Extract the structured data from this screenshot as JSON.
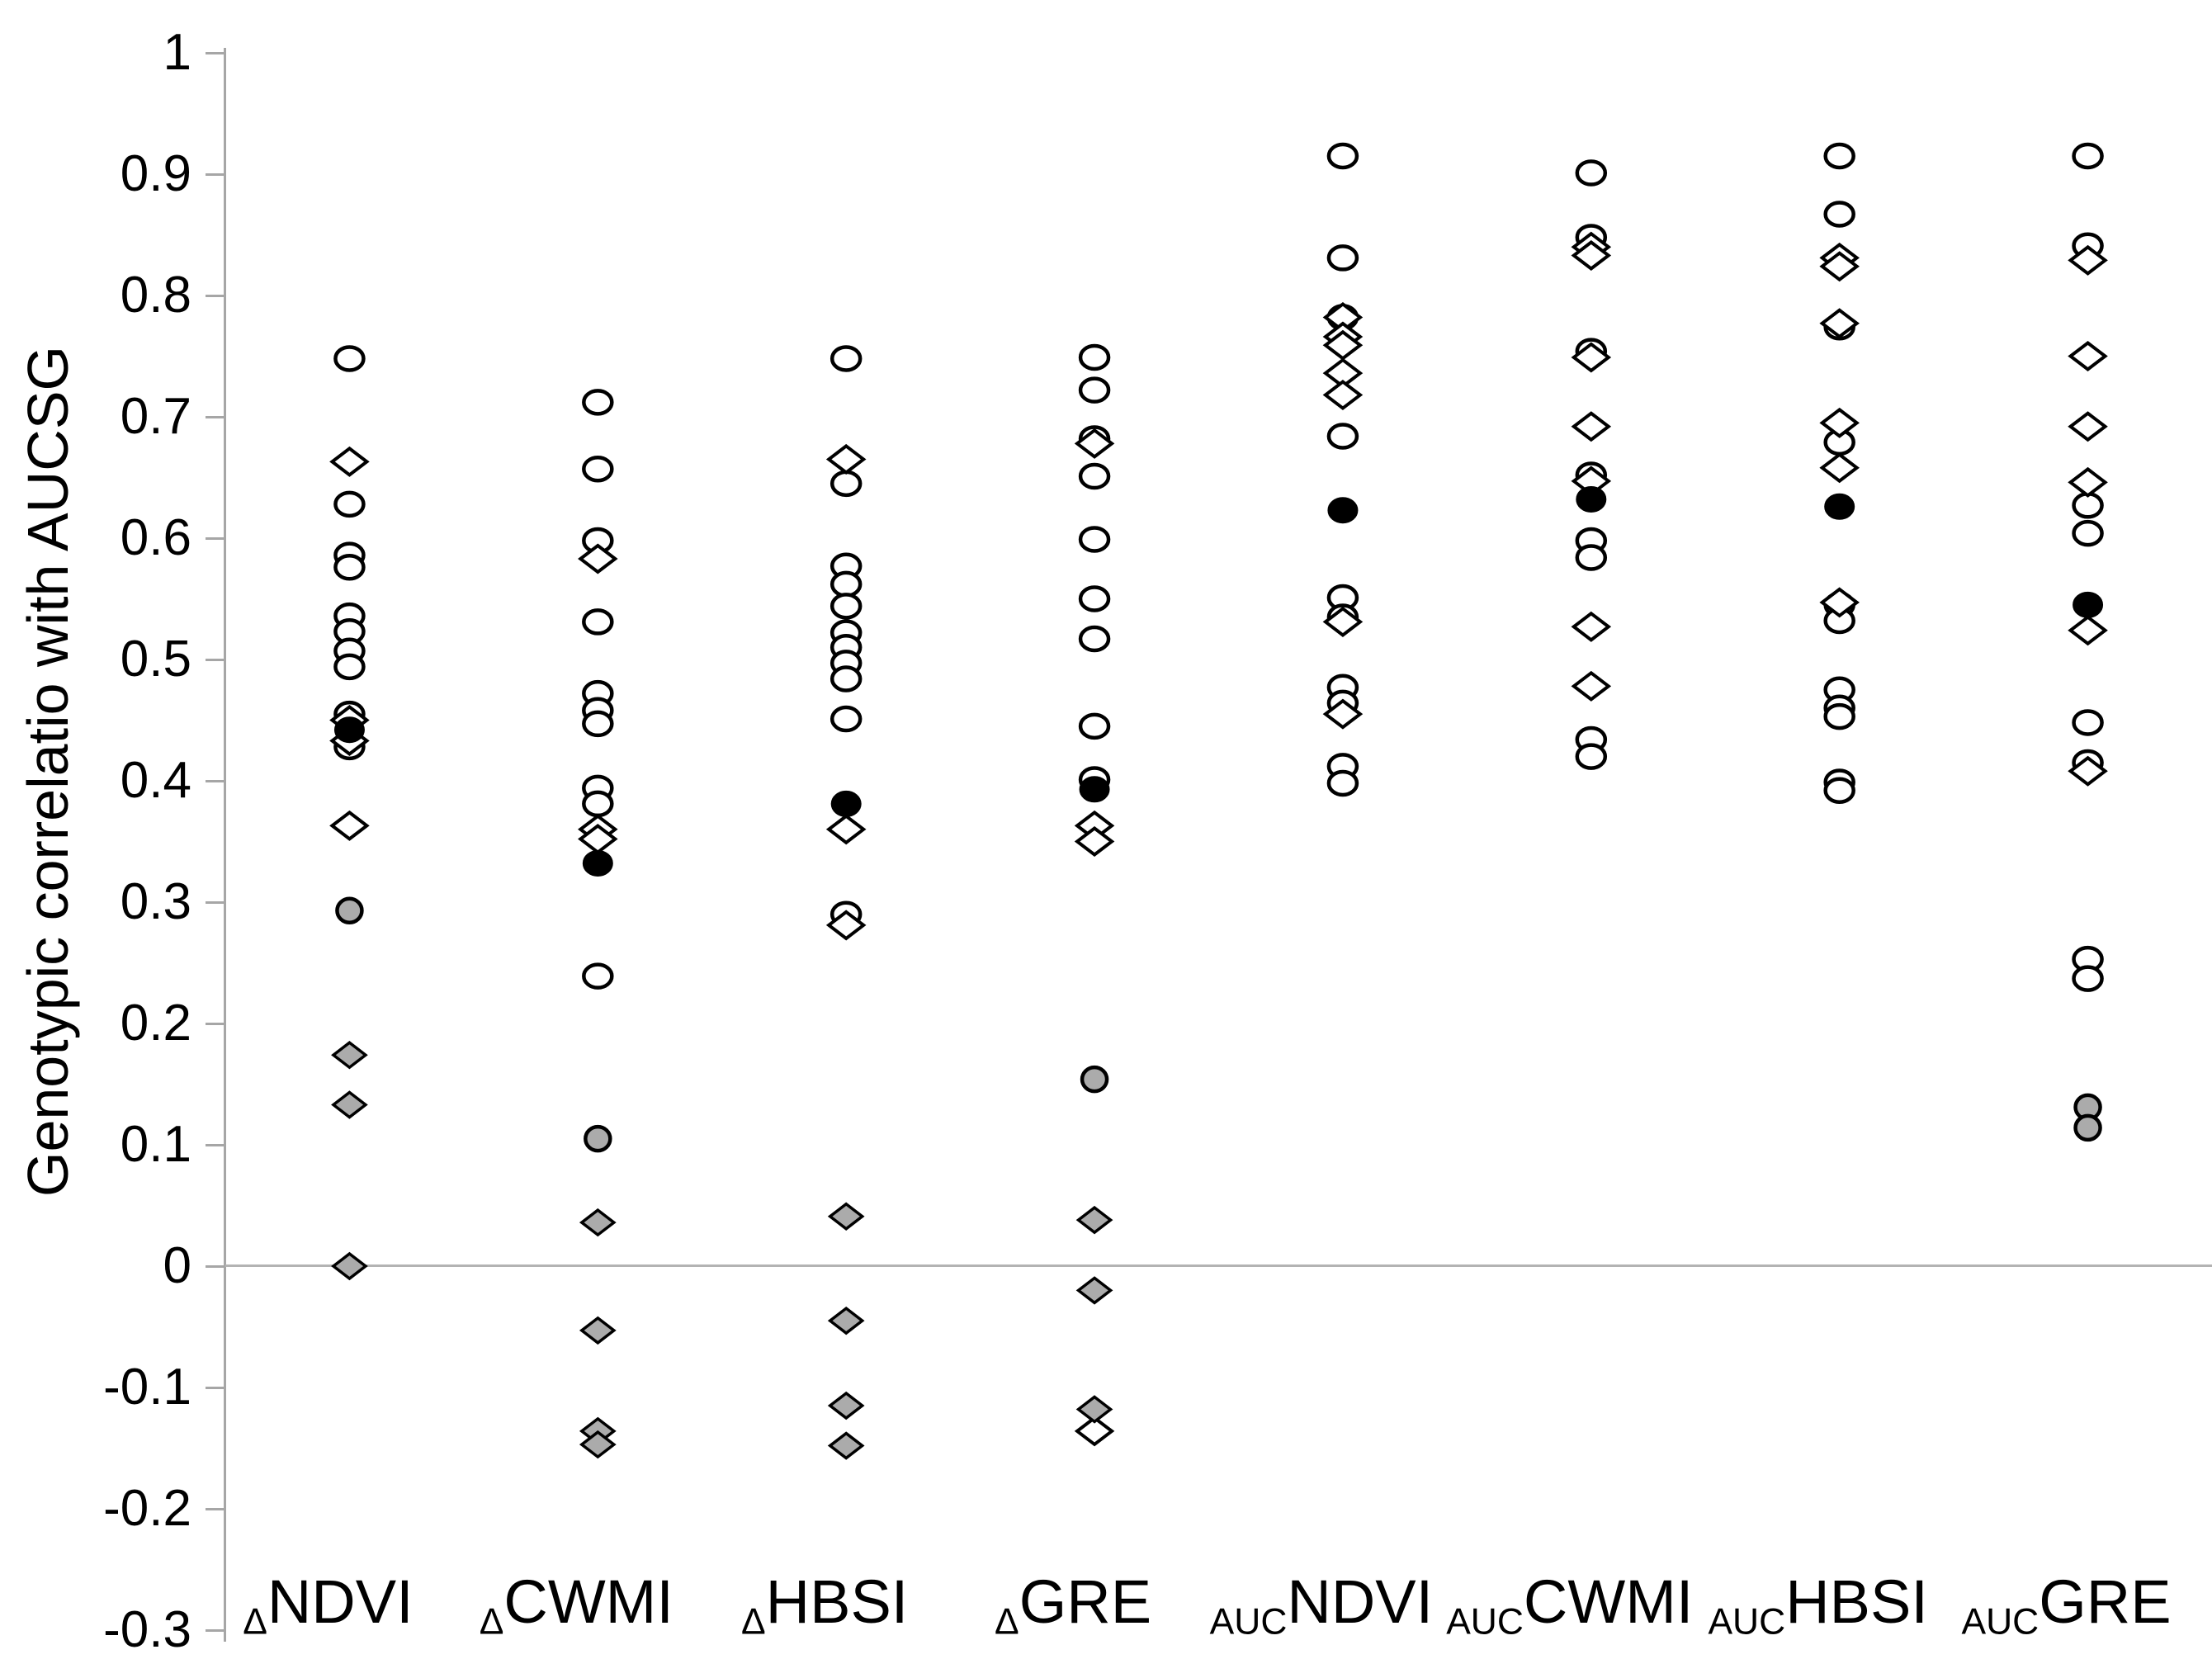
{
  "chart_data": {
    "type": "scatter",
    "title": "",
    "xlabel": "",
    "ylabel": "Genotypic correlatio with AUCSG",
    "ylim": [
      -0.3,
      1.0
    ],
    "y_ticks": [
      "1",
      "0.9",
      "0.8",
      "0.7",
      "0.6",
      "0.5",
      "0.4",
      "0.3",
      "0.2",
      "0.1",
      "0",
      "-0.1",
      "-0.2",
      "-0.3"
    ],
    "grid": "zero-line-only",
    "legend": "none",
    "colors": {
      "axis": "#a6a6a6",
      "zero_line": "#b3b3b3",
      "open_fill": "#ffffff",
      "gray_fill": "#ababab",
      "black_fill": "#000000",
      "marker_stroke": "#000000"
    },
    "categories": [
      {
        "prefix": "Δ",
        "name": "NDVI"
      },
      {
        "prefix": "Δ",
        "name": "CWMI"
      },
      {
        "prefix": "Δ",
        "name": "HBSI"
      },
      {
        "prefix": "Δ",
        "name": "GRE"
      },
      {
        "prefix": "AUC",
        "name": "NDVI"
      },
      {
        "prefix": "AUC",
        "name": "CWMI"
      },
      {
        "prefix": "AUC",
        "name": "HBSI"
      },
      {
        "prefix": "AUC",
        "name": "GRE"
      }
    ],
    "series": [
      {
        "name": "open-circle",
        "marker": "circle",
        "fill": "#ffffff",
        "stroke": "#000000",
        "values_by_category": [
          [
            0.748,
            0.628,
            0.586,
            0.576,
            0.536,
            0.523,
            0.507,
            0.494,
            0.455,
            0.428
          ],
          [
            0.712,
            0.657,
            0.598,
            0.531,
            0.472,
            0.458,
            0.447,
            0.394,
            0.381,
            0.239
          ],
          [
            0.748,
            0.645,
            0.577,
            0.562,
            0.544,
            0.522,
            0.51,
            0.497,
            0.484,
            0.451,
            0.29
          ],
          [
            0.749,
            0.722,
            0.682,
            0.651,
            0.599,
            0.55,
            0.517,
            0.445,
            0.401
          ],
          [
            0.915,
            0.831,
            0.782,
            0.684,
            0.551,
            0.535,
            0.477,
            0.464,
            0.412,
            0.398
          ],
          [
            0.901,
            0.848,
            0.754,
            0.652,
            0.598,
            0.584,
            0.434,
            0.42
          ],
          [
            0.915,
            0.867,
            0.774,
            0.679,
            0.545,
            0.532,
            0.475,
            0.46,
            0.453,
            0.399,
            0.392
          ],
          [
            0.915,
            0.841,
            0.627,
            0.604,
            0.448,
            0.415,
            0.253,
            0.237
          ]
        ]
      },
      {
        "name": "open-diamond",
        "marker": "diamond",
        "fill": "#ffffff",
        "stroke": "#000000",
        "values_by_category": [
          [
            0.663,
            0.45,
            0.433,
            0.363
          ],
          [
            0.583,
            0.36,
            0.352
          ],
          [
            0.665,
            0.36,
            0.281
          ],
          [
            0.678,
            0.363,
            0.35,
            -0.136
          ],
          [
            0.782,
            0.766,
            0.759,
            0.736,
            0.718,
            0.531,
            0.455
          ],
          [
            0.84,
            0.833,
            0.749,
            0.692,
            0.647,
            0.527,
            0.478
          ],
          [
            0.831,
            0.824,
            0.777,
            0.695,
            0.658,
            0.547
          ],
          [
            0.829,
            0.75,
            0.692,
            0.646,
            0.524,
            0.408
          ]
        ]
      },
      {
        "name": "gray-diamond",
        "marker": "diamond",
        "fill": "#ababab",
        "stroke": "#000000",
        "values_by_category": [
          [
            0.174,
            0.133,
            0.0
          ],
          [
            0.036,
            -0.053,
            -0.136,
            -0.147
          ],
          [
            0.041,
            -0.045,
            -0.115,
            -0.148
          ],
          [
            0.038,
            -0.02,
            -0.118
          ],
          [],
          [],
          [],
          []
        ]
      },
      {
        "name": "gray-circle",
        "marker": "circle",
        "fill": "#ababab",
        "stroke": "#000000",
        "values_by_category": [
          [
            0.293
          ],
          [
            0.105
          ],
          [],
          [
            0.154
          ],
          [],
          [],
          [],
          [
            0.131,
            0.114
          ]
        ]
      },
      {
        "name": "black-circle",
        "marker": "circle",
        "fill": "#000000",
        "stroke": "#000000",
        "values_by_category": [
          [
            0.442
          ],
          [
            0.332
          ],
          [
            0.381
          ],
          [
            0.393
          ],
          [
            0.623
          ],
          [
            0.632
          ],
          [
            0.626
          ],
          [
            0.545
          ]
        ]
      }
    ]
  }
}
